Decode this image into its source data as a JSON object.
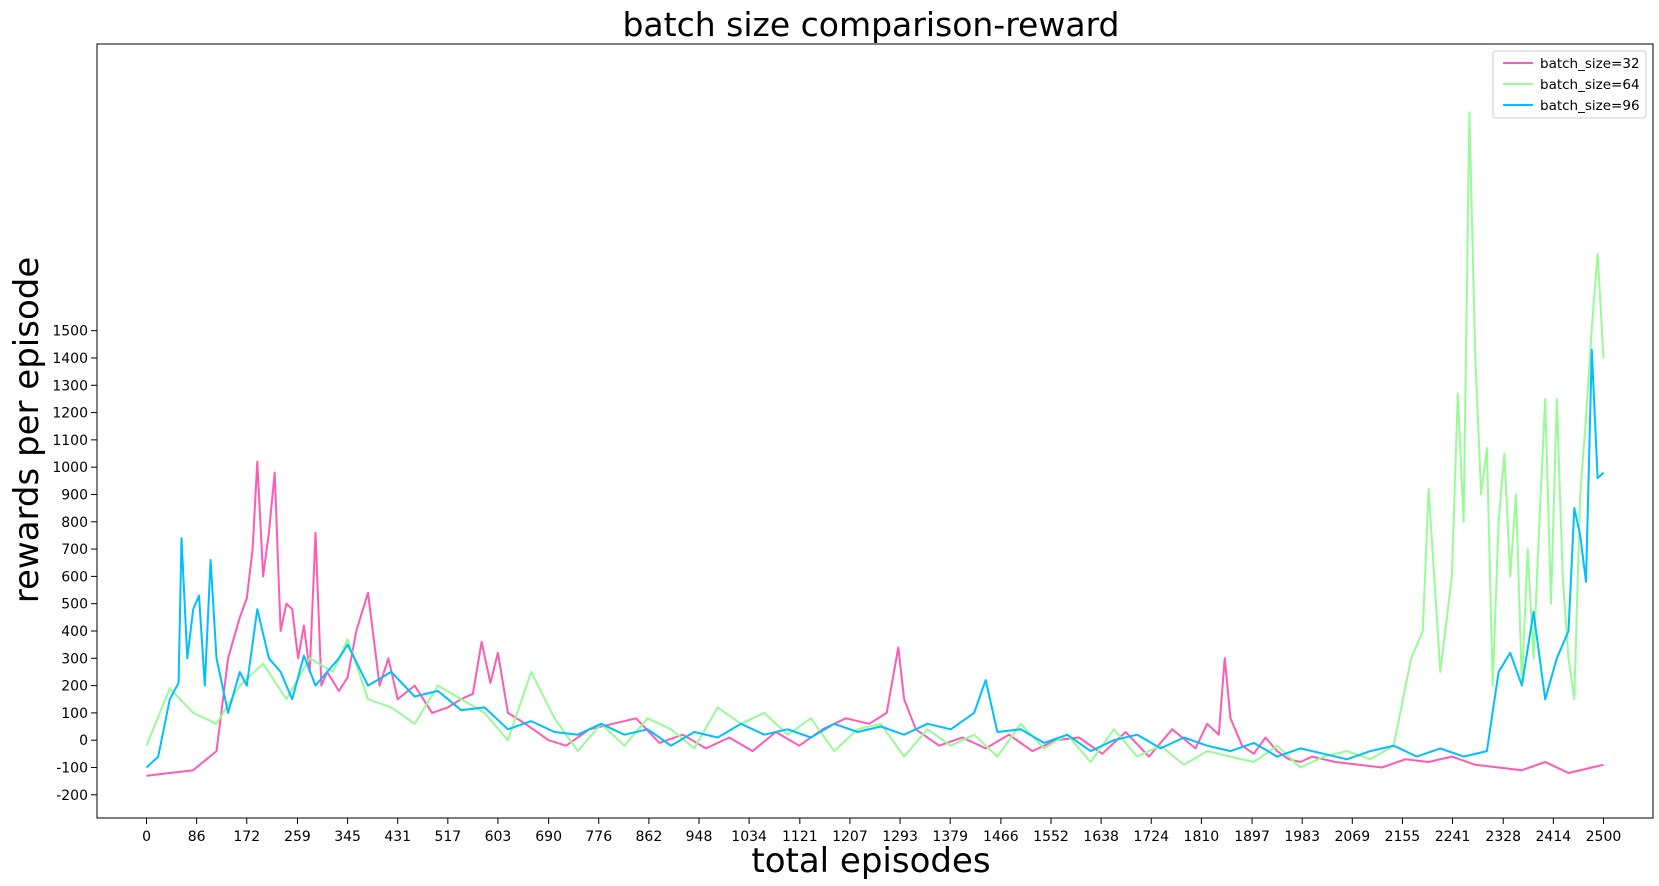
{
  "chart_data": {
    "type": "line",
    "title": "batch size comparison-reward",
    "xlabel": "total episodes",
    "ylabel": "rewards per episode",
    "xlim": [
      -85,
      2585
    ],
    "ylim": [
      -285,
      2550
    ],
    "x_ticks": [
      "0",
      "86",
      "172",
      "259",
      "345",
      "431",
      "517",
      "603",
      "690",
      "776",
      "862",
      "948",
      "1034",
      "1121",
      "1207",
      "1293",
      "1379",
      "1466",
      "1552",
      "1638",
      "1724",
      "1810",
      "1897",
      "1983",
      "2069",
      "2155",
      "2241",
      "2328",
      "2414",
      "2500"
    ],
    "y_ticks": [
      "-200",
      "-100",
      "0",
      "100",
      "200",
      "300",
      "400",
      "500",
      "600",
      "700",
      "800",
      "900",
      "1000",
      "1100",
      "1200",
      "1300",
      "1400",
      "1500"
    ],
    "grid": false,
    "legend_position": "top-right",
    "series": [
      {
        "name": "batch_size=32",
        "color": "#ff5ab4",
        "x": [
          0,
          40,
          80,
          120,
          140,
          160,
          172,
          182,
          190,
          200,
          210,
          220,
          230,
          240,
          250,
          260,
          270,
          280,
          290,
          300,
          310,
          330,
          345,
          360,
          380,
          400,
          415,
          431,
          460,
          490,
          517,
          540,
          560,
          575,
          590,
          603,
          620,
          650,
          690,
          720,
          760,
          800,
          840,
          880,
          920,
          960,
          1000,
          1040,
          1080,
          1120,
          1160,
          1200,
          1240,
          1270,
          1290,
          1300,
          1320,
          1360,
          1400,
          1440,
          1480,
          1520,
          1560,
          1600,
          1640,
          1680,
          1720,
          1760,
          1800,
          1820,
          1840,
          1850,
          1860,
          1880,
          1900,
          1920,
          1940,
          1960,
          1980,
          2000,
          2040,
          2080,
          2120,
          2160,
          2200,
          2240,
          2280,
          2320,
          2360,
          2400,
          2440,
          2480,
          2500
        ],
        "values": [
          -130,
          -120,
          -110,
          -40,
          300,
          450,
          520,
          700,
          1020,
          600,
          760,
          980,
          400,
          500,
          480,
          300,
          420,
          250,
          760,
          200,
          250,
          180,
          230,
          400,
          540,
          200,
          300,
          150,
          200,
          100,
          120,
          150,
          170,
          360,
          210,
          320,
          100,
          60,
          0,
          -20,
          40,
          60,
          80,
          -10,
          20,
          -30,
          10,
          -40,
          30,
          -20,
          40,
          80,
          60,
          100,
          340,
          150,
          40,
          -20,
          10,
          -30,
          20,
          -40,
          0,
          10,
          -50,
          30,
          -60,
          40,
          -30,
          60,
          20,
          300,
          80,
          -20,
          -50,
          10,
          -40,
          -70,
          -80,
          -60,
          -80,
          -90,
          -100,
          -70,
          -80,
          -60,
          -90,
          -100,
          -110,
          -80,
          -120,
          -100,
          -90
        ]
      },
      {
        "name": "batch_size=64",
        "color": "#98fb98",
        "x": [
          0,
          40,
          80,
          120,
          160,
          200,
          240,
          280,
          320,
          345,
          380,
          420,
          460,
          500,
          540,
          580,
          620,
          660,
          700,
          740,
          780,
          820,
          860,
          900,
          940,
          980,
          1020,
          1060,
          1100,
          1140,
          1180,
          1220,
          1260,
          1300,
          1340,
          1380,
          1420,
          1460,
          1500,
          1540,
          1580,
          1620,
          1660,
          1700,
          1740,
          1780,
          1820,
          1860,
          1900,
          1940,
          1980,
          2020,
          2060,
          2100,
          2140,
          2170,
          2190,
          2200,
          2220,
          2240,
          2250,
          2260,
          2270,
          2280,
          2290,
          2300,
          2310,
          2320,
          2330,
          2340,
          2350,
          2360,
          2370,
          2380,
          2390,
          2400,
          2410,
          2420,
          2430,
          2440,
          2450,
          2460,
          2470,
          2480,
          2490,
          2500
        ],
        "values": [
          -20,
          190,
          100,
          60,
          200,
          280,
          150,
          300,
          250,
          370,
          150,
          120,
          60,
          200,
          150,
          100,
          0,
          250,
          80,
          -40,
          60,
          -20,
          80,
          40,
          -30,
          120,
          60,
          100,
          20,
          80,
          -40,
          40,
          60,
          -60,
          40,
          -20,
          20,
          -60,
          60,
          -30,
          20,
          -80,
          40,
          -60,
          -20,
          -90,
          -40,
          -60,
          -80,
          -20,
          -100,
          -60,
          -40,
          -70,
          -20,
          300,
          400,
          920,
          250,
          600,
          1270,
          800,
          2300,
          1400,
          900,
          1070,
          200,
          800,
          1050,
          600,
          900,
          200,
          700,
          300,
          800,
          1250,
          500,
          1250,
          600,
          300,
          150,
          900,
          1180,
          1510,
          1780,
          1400
        ]
      },
      {
        "name": "batch_size=96",
        "color": "#00bfff",
        "x": [
          0,
          20,
          40,
          55,
          60,
          70,
          80,
          90,
          100,
          110,
          120,
          140,
          160,
          172,
          190,
          210,
          230,
          250,
          270,
          290,
          310,
          330,
          345,
          380,
          420,
          460,
          500,
          540,
          580,
          620,
          660,
          700,
          740,
          780,
          820,
          860,
          900,
          940,
          980,
          1020,
          1060,
          1100,
          1140,
          1180,
          1220,
          1260,
          1300,
          1340,
          1380,
          1420,
          1440,
          1460,
          1500,
          1540,
          1580,
          1620,
          1660,
          1700,
          1740,
          1780,
          1820,
          1860,
          1900,
          1940,
          1980,
          2020,
          2060,
          2100,
          2140,
          2180,
          2220,
          2260,
          2300,
          2320,
          2340,
          2360,
          2380,
          2400,
          2420,
          2440,
          2450,
          2460,
          2470,
          2480,
          2490,
          2500
        ],
        "values": [
          -100,
          -60,
          150,
          210,
          740,
          300,
          480,
          530,
          200,
          660,
          300,
          100,
          250,
          200,
          480,
          300,
          250,
          150,
          310,
          200,
          250,
          300,
          350,
          200,
          250,
          160,
          180,
          110,
          120,
          40,
          70,
          30,
          20,
          60,
          20,
          40,
          -20,
          30,
          10,
          60,
          20,
          40,
          10,
          60,
          30,
          50,
          20,
          60,
          40,
          100,
          220,
          30,
          40,
          -10,
          20,
          -40,
          0,
          20,
          -30,
          10,
          -20,
          -40,
          -10,
          -60,
          -30,
          -50,
          -70,
          -40,
          -20,
          -60,
          -30,
          -60,
          -40,
          250,
          320,
          200,
          470,
          150,
          300,
          400,
          850,
          750,
          580,
          1430,
          960,
          980
        ]
      }
    ]
  }
}
